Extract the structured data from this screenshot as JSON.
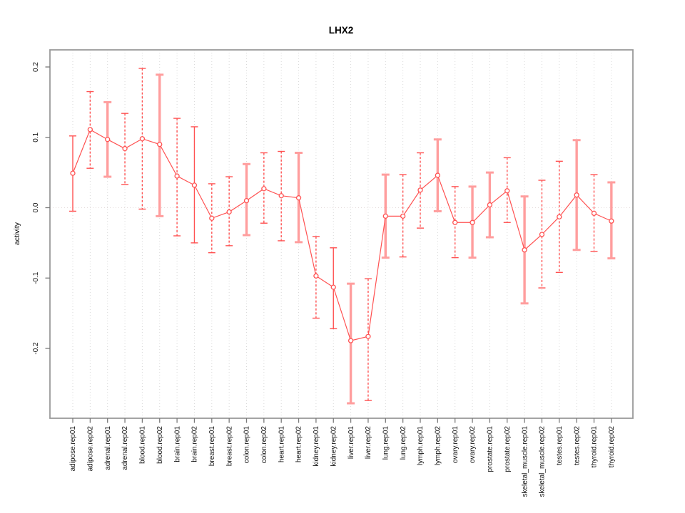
{
  "chart_data": {
    "type": "line",
    "subtype": "points-with-error-bars",
    "title": "LHX2",
    "xlabel": "",
    "ylabel": "activity",
    "ylim": [
      -0.3,
      0.22
    ],
    "yticks": [
      0.2,
      0.1,
      0.0,
      -0.1,
      -0.2
    ],
    "ytick_labels": [
      "0.2",
      "0.1",
      "0.0",
      "-0.1",
      "-0.2"
    ],
    "grid": {
      "vertical": "dotted",
      "horizontal_zero_line": true
    },
    "legend": "none",
    "colors": {
      "series": "#ff5252",
      "series_light": "#ff9e9e",
      "grid": "#d9d9d9",
      "zero_line": "#e4dada",
      "frame": "#9a9a9a",
      "tick": "#7a7a7a",
      "text": "#111111",
      "marker_fill": "#ffffff"
    },
    "categories": [
      "adipose.rep01",
      "adipose.rep02",
      "adrenal.rep01",
      "adrenal.rep02",
      "blood.rep01",
      "blood.rep02",
      "brain.rep01",
      "brain.rep02",
      "breast.rep01",
      "breast.rep02",
      "colon.rep01",
      "colon.rep02",
      "heart.rep01",
      "heart.rep02",
      "kidney.rep01",
      "kidney.rep02",
      "liver.rep01",
      "liver.rep02",
      "lung.rep01",
      "lung.rep02",
      "lymph.rep01",
      "lymph.rep02",
      "ovary.rep01",
      "ovary.rep02",
      "prostate.rep01",
      "prostate.rep02",
      "skeletal_muscle.rep01",
      "skeletal_muscle.rep02",
      "testes.rep01",
      "testes.rep02",
      "thyroid.rep01",
      "thyroid.rep02"
    ],
    "series": [
      {
        "name": "activity",
        "values": [
          0.049,
          0.111,
          0.097,
          0.084,
          0.098,
          0.09,
          0.045,
          0.032,
          -0.015,
          -0.006,
          0.01,
          0.027,
          0.017,
          0.014,
          -0.097,
          -0.113,
          -0.189,
          -0.183,
          -0.012,
          -0.012,
          0.025,
          0.046,
          -0.021,
          -0.021,
          0.004,
          0.024,
          -0.06,
          -0.038,
          -0.013,
          0.018,
          -0.008,
          -0.019
        ],
        "lower": [
          -0.005,
          0.056,
          0.044,
          0.033,
          -0.002,
          -0.012,
          -0.04,
          -0.05,
          -0.064,
          -0.054,
          -0.039,
          -0.022,
          -0.047,
          -0.049,
          -0.157,
          -0.172,
          -0.278,
          -0.274,
          -0.071,
          -0.07,
          -0.029,
          -0.005,
          -0.071,
          -0.071,
          -0.042,
          -0.021,
          -0.136,
          -0.114,
          -0.092,
          -0.06,
          -0.062,
          -0.072
        ],
        "upper": [
          0.102,
          0.165,
          0.15,
          0.134,
          0.198,
          0.189,
          0.127,
          0.115,
          0.034,
          0.044,
          0.062,
          0.078,
          0.08,
          0.078,
          -0.041,
          -0.057,
          -0.108,
          -0.101,
          0.047,
          0.047,
          0.078,
          0.097,
          0.03,
          0.03,
          0.05,
          0.071,
          0.016,
          0.039,
          0.066,
          0.096,
          0.047,
          0.036
        ],
        "bar_styles": [
          "solid",
          "dashed",
          "thick",
          "dashed",
          "dashed",
          "thick",
          "dashed",
          "solid",
          "dashed",
          "dashed",
          "thick",
          "dashed",
          "dashed",
          "thick",
          "dashed",
          "solid",
          "thick",
          "dashed",
          "thick",
          "dashed",
          "dashed",
          "thick",
          "dashed",
          "thick",
          "thick",
          "dashed",
          "thick",
          "dashed",
          "dashed",
          "thick",
          "dashed",
          "thick"
        ]
      }
    ]
  }
}
